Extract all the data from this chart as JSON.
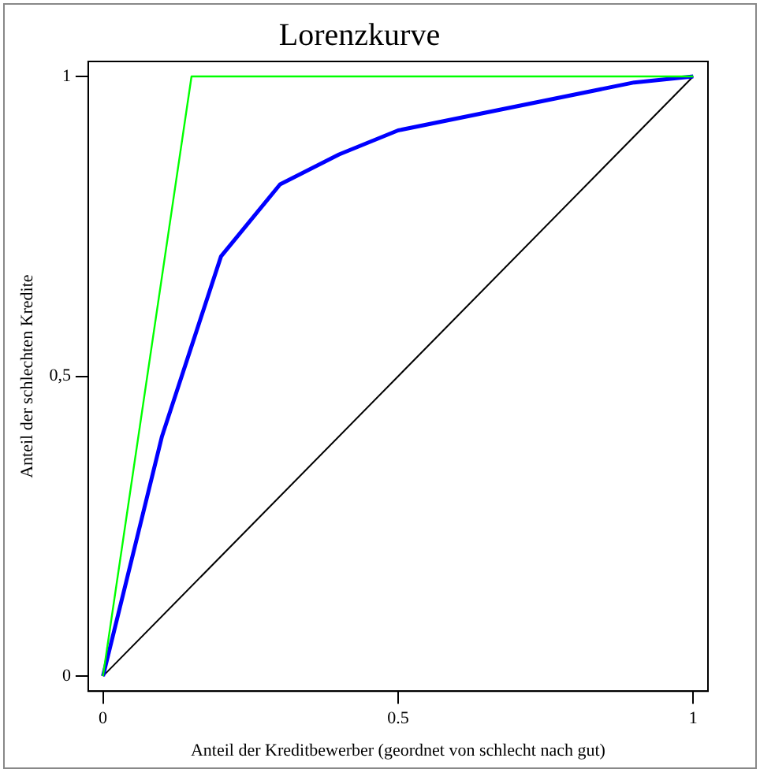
{
  "chart_data": {
    "type": "line",
    "title": "Lorenzkurve",
    "xlabel": "Anteil der Kreditbewerber (geordnet von schlecht nach gut)",
    "ylabel": "Anteil der schlechten Kredite",
    "series": [
      {
        "color": "#00ff00",
        "x": [
          0,
          0.15,
          1
        ],
        "values": [
          0,
          1,
          1
        ]
      },
      {
        "color": "#0000ff",
        "x": [
          0,
          0.1,
          0.2,
          0.3,
          0.4,
          0.5,
          0.9,
          1
        ],
        "values": [
          0,
          0.4,
          0.7,
          0.82,
          0.87,
          0.91,
          0.99,
          1
        ]
      },
      {
        "color": "#000000",
        "x": [
          0,
          1
        ],
        "values": [
          0,
          1
        ]
      }
    ],
    "xlim": [
      -0.025,
      1.025
    ],
    "ylim": [
      -0.025,
      1.025
    ],
    "xticks": [
      0,
      0.5,
      1
    ],
    "yticks": [
      0,
      {
        "value": 0.5,
        "label": "0,5"
      },
      1
    ],
    "grid": false,
    "legend": false,
    "marker": "none",
    "line_style": "solid"
  }
}
